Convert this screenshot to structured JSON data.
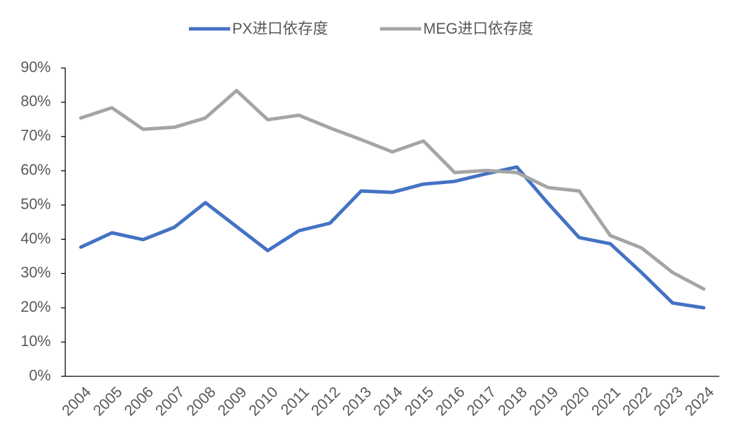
{
  "chart_data": {
    "type": "line",
    "categories": [
      "2004",
      "2005",
      "2006",
      "2007",
      "2008",
      "2009",
      "2010",
      "2011",
      "2012",
      "2013",
      "2014",
      "2015",
      "2016",
      "2017",
      "2018",
      "2019",
      "2020",
      "2021",
      "2022",
      "2023",
      "2024"
    ],
    "series": [
      {
        "name": "PX进口依存度",
        "color": "#4472c4",
        "values": [
          37.7,
          41.9,
          39.9,
          43.5,
          50.7,
          43.7,
          36.7,
          42.5,
          44.7,
          54.1,
          53.7,
          56.1,
          56.9,
          59.1,
          61.1,
          50.5,
          40.5,
          38.7,
          30.3,
          21.4,
          20.0
        ]
      },
      {
        "name": "MEG进口依存度",
        "color": "#a5a5a5",
        "values": [
          75.4,
          78.4,
          72.1,
          72.7,
          75.4,
          83.4,
          74.9,
          76.2,
          72.5,
          69.1,
          65.5,
          68.7,
          59.5,
          60.1,
          59.5,
          55.1,
          54.1,
          41.1,
          37.5,
          30.3,
          25.5
        ]
      }
    ],
    "ylim": [
      0,
      90
    ],
    "yticks": [
      {
        "value": 0,
        "label": "0%"
      },
      {
        "value": 10,
        "label": "10%"
      },
      {
        "value": 20,
        "label": "20%"
      },
      {
        "value": 30,
        "label": "30%"
      },
      {
        "value": 40,
        "label": "40%"
      },
      {
        "value": 50,
        "label": "50%"
      },
      {
        "value": 60,
        "label": "60%"
      },
      {
        "value": 70,
        "label": "70%"
      },
      {
        "value": 80,
        "label": "80%"
      },
      {
        "value": 90,
        "label": "90%"
      }
    ],
    "grid": false,
    "legend": "top"
  }
}
